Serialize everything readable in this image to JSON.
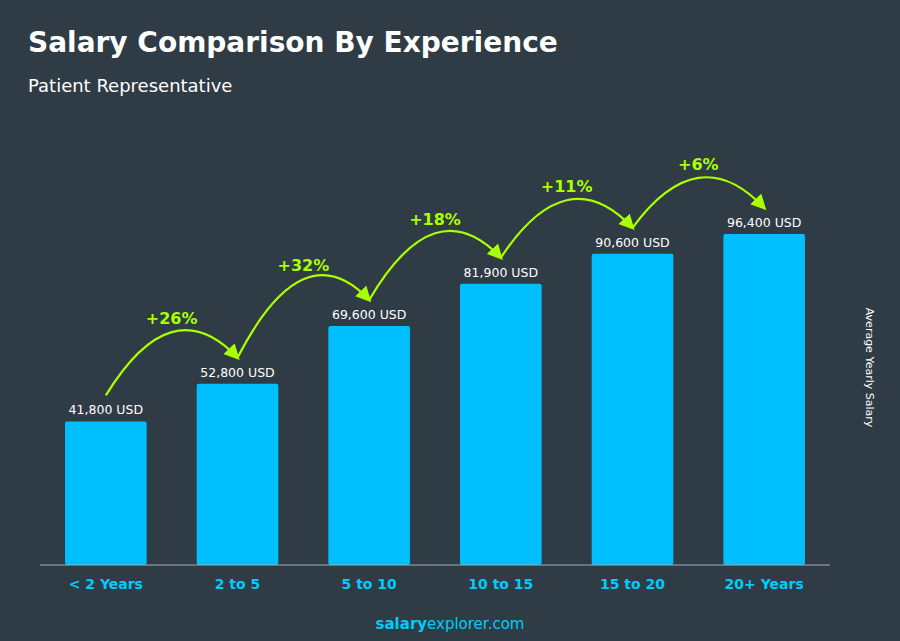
{
  "chart_data": {
    "type": "bar",
    "title": "Salary Comparison By Experience",
    "subtitle": "Patient Representative",
    "ylabel": "Average Yearly Salary",
    "categories": [
      "< 2 Years",
      "2 to 5",
      "5 to 10",
      "10 to 15",
      "15 to 20",
      "20+ Years"
    ],
    "values": [
      41800,
      52800,
      69600,
      81900,
      90600,
      96400
    ],
    "value_labels": [
      "41,800 USD",
      "52,800 USD",
      "69,600 USD",
      "81,900 USD",
      "90,600 USD",
      "96,400 USD"
    ],
    "data_labels": true,
    "annotations": [
      "+26%",
      "+32%",
      "+18%",
      "+11%",
      "+6%"
    ],
    "footer": [
      "salary",
      "explorer.com"
    ],
    "color": "#00bfff",
    "ylim": [
      0,
      115000
    ],
    "tick_labels": "x",
    "grid": false
  }
}
